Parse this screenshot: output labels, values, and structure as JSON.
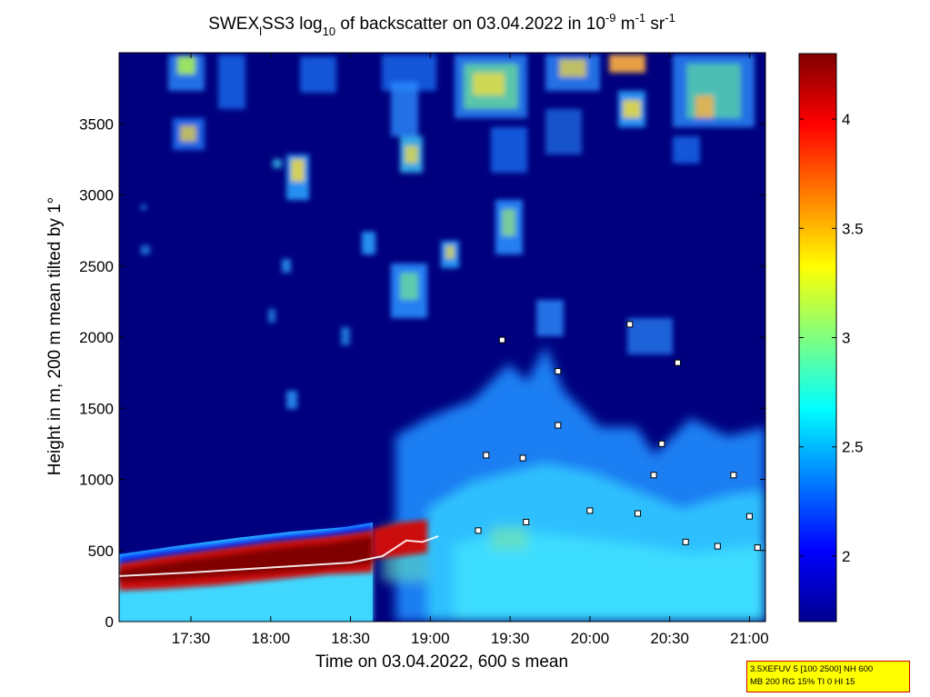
{
  "chart_data": {
    "type": "heatmap",
    "title": {
      "part1": "SWEX",
      "sub1": "l",
      "part2": "SS3 log",
      "sub2": "10",
      "part3": " of backscatter on 03.04.2022 in 10",
      "sup1": "-9",
      "part4": " m",
      "sup2": "-1",
      "part5": " sr",
      "sup3": "-1"
    },
    "xlabel": "Time on 03.04.2022, 600 s mean",
    "ylabel": "Height in m, 200 m mean tilted by 1°",
    "x_domain_hours": [
      17.05,
      21.1
    ],
    "x_ticks": [
      {
        "h": 17.5,
        "label": "17:30"
      },
      {
        "h": 18.0,
        "label": "18:00"
      },
      {
        "h": 18.5,
        "label": "18:30"
      },
      {
        "h": 19.0,
        "label": "19:00"
      },
      {
        "h": 19.5,
        "label": "19:30"
      },
      {
        "h": 20.0,
        "label": "20:00"
      },
      {
        "h": 20.5,
        "label": "20:30"
      },
      {
        "h": 21.0,
        "label": "21:00"
      }
    ],
    "ylim": [
      0,
      4000
    ],
    "y_ticks": [
      {
        "v": 0,
        "label": "0"
      },
      {
        "v": 500,
        "label": "500"
      },
      {
        "v": 1000,
        "label": "1000"
      },
      {
        "v": 1500,
        "label": "1500"
      },
      {
        "v": 2000,
        "label": "2000"
      },
      {
        "v": 2500,
        "label": "2500"
      },
      {
        "v": 3000,
        "label": "3000"
      },
      {
        "v": 3500,
        "label": "3500"
      }
    ],
    "colorbar": {
      "range": [
        1.7,
        4.3
      ],
      "ticks": [
        {
          "v": 2,
          "label": "2"
        },
        {
          "v": 2.5,
          "label": "2.5"
        },
        {
          "v": 3,
          "label": "3"
        },
        {
          "v": 3.5,
          "label": "3.5"
        },
        {
          "v": 4,
          "label": "4"
        }
      ],
      "colormap": "jet"
    },
    "mixing_layer_height": [
      [
        17.05,
        320
      ],
      [
        17.5,
        345
      ],
      [
        18.0,
        380
      ],
      [
        18.5,
        415
      ],
      [
        18.7,
        460
      ],
      [
        18.85,
        570
      ],
      [
        18.95,
        560
      ],
      [
        19.05,
        600
      ]
    ],
    "cloud_base_points": [
      [
        19.35,
        1170
      ],
      [
        19.45,
        1980
      ],
      [
        19.58,
        1150
      ],
      [
        19.8,
        1380
      ],
      [
        20.25,
        2090
      ],
      [
        20.45,
        1250
      ],
      [
        20.55,
        1820
      ],
      [
        19.8,
        1760
      ],
      [
        20.4,
        1030
      ],
      [
        20.9,
        1030
      ],
      [
        21.0,
        740
      ],
      [
        19.3,
        640
      ],
      [
        19.6,
        700
      ],
      [
        20.0,
        780
      ],
      [
        20.3,
        760
      ],
      [
        20.6,
        560
      ],
      [
        20.8,
        530
      ],
      [
        21.05,
        520
      ]
    ],
    "notes": {
      "line1": "3.5XEFUV 5 [100 2500] NH 600",
      "line2": "MB 200 RG 15% TI 0 HI 15"
    }
  }
}
